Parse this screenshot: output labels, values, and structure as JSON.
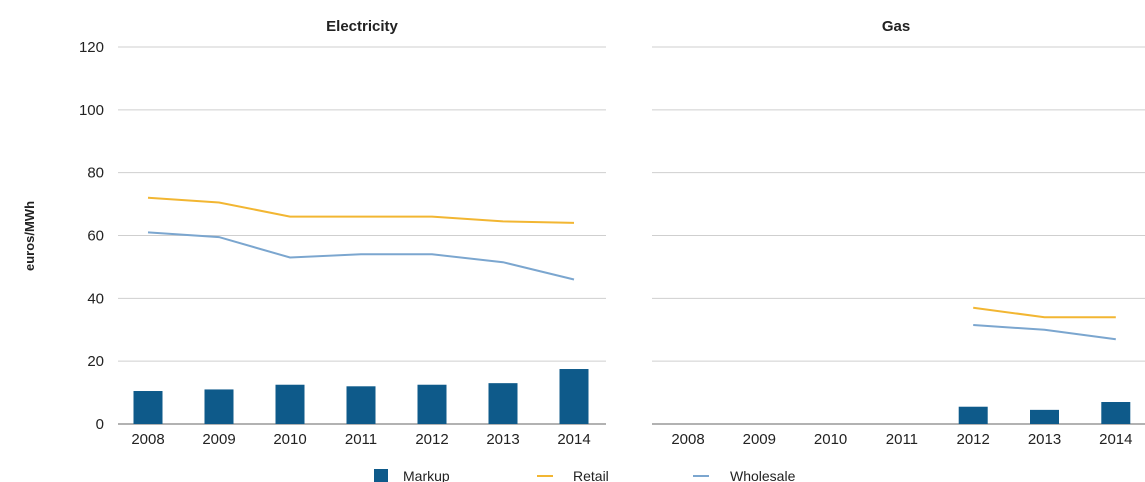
{
  "chart_data": {
    "type": "bar",
    "ylabel": "euros/MWh",
    "ylim": [
      0,
      120
    ],
    "yticks": [
      0,
      20,
      40,
      60,
      80,
      100,
      120
    ],
    "grid": true,
    "legend_position": "bottom",
    "colors": {
      "Markup": "#0e5a8a",
      "Retail": "#f2b632",
      "Wholesale": "#7ba6cf"
    },
    "legend": [
      "Markup",
      "Retail",
      "Wholesale"
    ],
    "panels": [
      {
        "title": "Electricity",
        "categories": [
          "2008",
          "2009",
          "2010",
          "2011",
          "2012",
          "2013",
          "2014"
        ],
        "series": [
          {
            "name": "Markup",
            "type": "bar",
            "values": [
              10.5,
              11,
              12.5,
              12,
              12.5,
              13,
              17.5
            ]
          },
          {
            "name": "Retail",
            "type": "line",
            "values": [
              72,
              70.5,
              66,
              66,
              66,
              64.5,
              64
            ]
          },
          {
            "name": "Wholesale",
            "type": "line",
            "values": [
              61,
              59.5,
              53,
              54,
              54,
              51.5,
              46
            ]
          }
        ]
      },
      {
        "title": "Gas",
        "categories": [
          "2008",
          "2009",
          "2010",
          "2011",
          "2012",
          "2013",
          "2014"
        ],
        "series": [
          {
            "name": "Markup",
            "type": "bar",
            "values": [
              null,
              null,
              null,
              null,
              5.5,
              4.5,
              7
            ]
          },
          {
            "name": "Retail",
            "type": "line",
            "values": [
              null,
              null,
              null,
              null,
              37,
              34,
              34
            ]
          },
          {
            "name": "Wholesale",
            "type": "line",
            "values": [
              null,
              null,
              null,
              null,
              31.5,
              30,
              27
            ]
          }
        ]
      }
    ]
  }
}
